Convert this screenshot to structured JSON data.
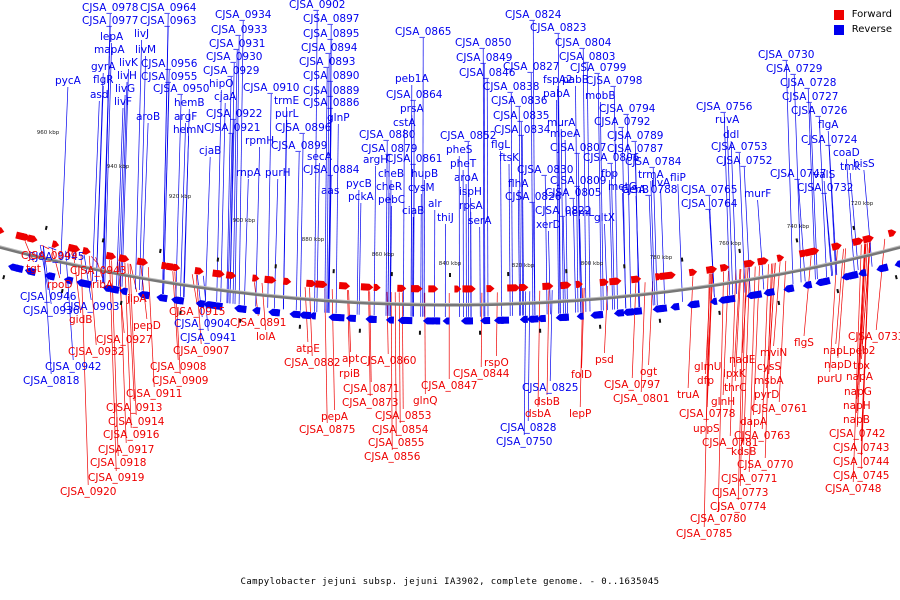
{
  "caption": "Campylobacter jejuni subsp. jejuni IA3902, complete genome. - 0..1635045",
  "legend": [
    {
      "label": "Forward",
      "color": "#ee0000"
    },
    {
      "label": "Reverse",
      "color": "#0000ee"
    }
  ],
  "colors": {
    "forward": "#ee0000",
    "reverse": "#0000ee",
    "backbone": "#777777"
  },
  "ticks": [
    "960 kbp",
    "940 kbp",
    "920 kbp",
    "900 kbp",
    "880 kbp",
    "860 kbp",
    "840 kbp",
    "820 kbp",
    "800 kbp",
    "780 kbp",
    "760 kbp",
    "740 kbp",
    "720 kbp"
  ],
  "reverse_genes": [
    "CJSA_0978",
    "CJSA_0977",
    "CJSA_0964",
    "CJSA_0963",
    "lepA",
    "livJ",
    "mapA",
    "livM",
    "gyrA",
    "livK",
    "CJSA_0956",
    "flgR",
    "livH",
    "CJSA_0955",
    "asd",
    "livG",
    "livF",
    "pycA",
    "CJSA_0950",
    "aroB",
    "hemB",
    "argF",
    "hemN",
    "cjaB",
    "CJSA_0934",
    "CJSA_0933",
    "CJSA_0931",
    "CJSA_0930",
    "CJSA_0929",
    "hipO",
    "cjaA",
    "CJSA_0922",
    "CJSA_0921",
    "CJSA_0910",
    "rpmH",
    "trmE",
    "purL",
    "CJSA_0896",
    "CJSA_0899",
    "purH",
    "rnpA",
    "CJSA_0902",
    "CJSA_0897",
    "CJSA_0895",
    "CJSA_0894",
    "CJSA_0893",
    "CJSA_0890",
    "CJSA_0889",
    "CJSA_0886",
    "glnP",
    "CJSA_0880",
    "CJSA_0879",
    "secA",
    "CJSA_0884",
    "aas",
    "argH",
    "pycB",
    "pckA",
    "CJSA_0865",
    "peb1A",
    "CJSA_0864",
    "prsA",
    "cstA",
    "cheB",
    "cheR",
    "pebC",
    "CJSA_0861",
    "hupB",
    "cysM",
    "ciaB",
    "CJSA_0850",
    "CJSA_0849",
    "CJSA_0846",
    "CJSA_0852",
    "pheS",
    "pheT",
    "alr",
    "thiJ",
    "aroA",
    "ispH",
    "rpsA",
    "serA",
    "CJSA_0838",
    "CJSA_0836",
    "CJSA_0835",
    "CJSA_0834",
    "flgL",
    "ftsK",
    "CJSA_0830",
    "flhA",
    "CJSA_0826",
    "CJSA_0822",
    "xerD",
    "CJSA_0824",
    "CJSA_0823",
    "CJSA_0827",
    "CJSA_0804",
    "CJSA_0803",
    "pabB",
    "CJSA_0799",
    "pabA",
    "CJSA_0798",
    "fspA2",
    "mobB",
    "murA",
    "CJSA_0794",
    "moeA",
    "CJSA_0792",
    "CJSA_0807",
    "CJSA_0806",
    "CJSA_0789",
    "CJSA_0787",
    "fbp",
    "CJSA_0784",
    "CJSA_0809",
    "CJSA_0805",
    "metG",
    "CJSA_0788",
    "hemL",
    "gltX",
    "trmA",
    "acnB",
    "ilvA",
    "fliP",
    "CJSA_0765",
    "CJSA_0764",
    "CJSA_0756",
    "ruvA",
    "ddl",
    "CJSA_0753",
    "CJSA_0752",
    "CJSA_0747",
    "murF",
    "CJSA_0730",
    "CJSA_0729",
    "CJSA_0728",
    "CJSA_0727",
    "CJSA_0726",
    "flgA",
    "CJSA_0724",
    "coaD",
    "tmk",
    "valS",
    "hisS",
    "CJSA_0732",
    "CJSA_0945",
    "CJSA_0946",
    "CJSA_0936",
    "CJSA_0903",
    "CJSA_0904",
    "CJSA_0941",
    "CJSA_0942",
    "CJSA_0818",
    "CJSA_0825",
    "CJSA_0828",
    "CJSA_0750"
  ],
  "forward_genes": [
    "CJSA_0949",
    "tgt",
    "CJSA_0943",
    "rpoD",
    "ribA",
    "gidB",
    "jlpA",
    "CJSA_0927",
    "pepD",
    "CJSA_0915",
    "CJSA_0932",
    "CJSA_0907",
    "CJSA_0908",
    "CJSA_0909",
    "CJSA_0911",
    "CJSA_0913",
    "CJSA_0914",
    "CJSA_0916",
    "CJSA_0917",
    "CJSA_0918",
    "CJSA_0919",
    "CJSA_0920",
    "CJSA_0891",
    "lolA",
    "atpE",
    "CJSA_0882",
    "apt",
    "rpiB",
    "CJSA_0871",
    "CJSA_0873",
    "pepA",
    "CJSA_0875",
    "CJSA_0860",
    "CJSA_0853",
    "CJSA_0854",
    "CJSA_0855",
    "CJSA_0856",
    "glnQ",
    "CJSA_0847",
    "CJSA_0844",
    "rspO",
    "dsbB",
    "dsbA",
    "folD",
    "lepP",
    "psd",
    "ogt",
    "CJSA_0797",
    "CJSA_0801",
    "glmU",
    "dfp",
    "truA",
    "CJSA_0778",
    "uppS",
    "CJSA_0781",
    "nadE",
    "lpxK",
    "thrC",
    "glnH",
    "kdsB",
    "CJSA_0770",
    "CJSA_0771",
    "CJSA_0773",
    "CJSA_0774",
    "CJSA_0780",
    "CJSA_0785",
    "mviN",
    "cysS",
    "msbA",
    "pyrD",
    "CJSA_0761",
    "dapA",
    "CJSA_0763",
    "flgS",
    "napL",
    "peb2",
    "napD",
    "tpx",
    "purU",
    "napA",
    "napG",
    "napH",
    "napB",
    "CJSA_0742",
    "CJSA_0743",
    "CJSA_0744",
    "CJSA_0745",
    "CJSA_0748",
    "CJSA_0733"
  ]
}
